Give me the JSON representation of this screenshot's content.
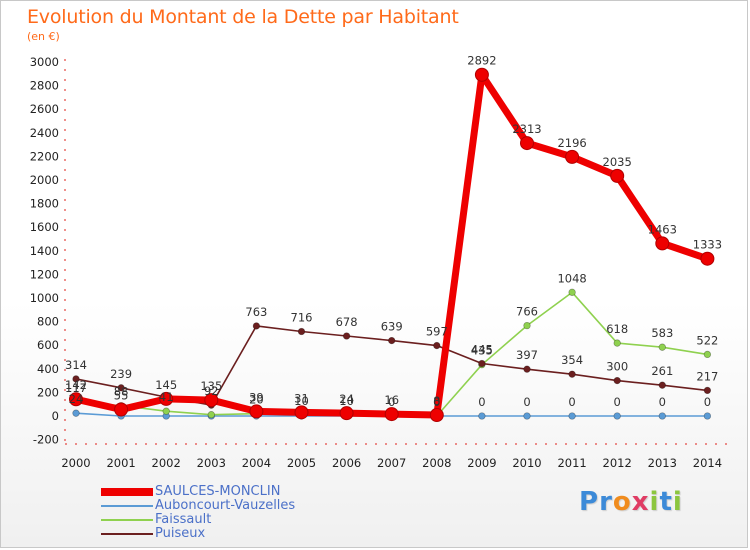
{
  "title": "Evolution du Montant de la Dette par Habitant",
  "subtitle": "(en €)",
  "logo": {
    "letters": [
      "P",
      "r",
      "o",
      "x",
      "i",
      "t",
      "i"
    ],
    "colors": [
      "#3c8ad8",
      "#3c8ad8",
      "#f08c1e",
      "#e03c64",
      "#8cc63e",
      "#3c8ad8",
      "#8cc63e"
    ]
  },
  "chart_data": {
    "type": "line",
    "x": [
      "2000",
      "2001",
      "2002",
      "2003",
      "2004",
      "2005",
      "2006",
      "2007",
      "2008",
      "2009",
      "2010",
      "2011",
      "2012",
      "2013",
      "2014"
    ],
    "ylim": [
      -200,
      3000
    ],
    "yticks": [
      "-200",
      "0",
      "200",
      "400",
      "600",
      "800",
      "1000",
      "1200",
      "1400",
      "1600",
      "1800",
      "2000",
      "2200",
      "2400",
      "2600",
      "2800",
      "3000"
    ],
    "ytick_values": [
      -200,
      0,
      200,
      400,
      600,
      800,
      1000,
      1200,
      1400,
      1600,
      1800,
      2000,
      2200,
      2400,
      2600,
      2800,
      3000
    ],
    "grid": false,
    "legend": "bottom-left",
    "series": [
      {
        "name": "SAULCES-MONCLIN",
        "color": "#ee0000",
        "values": [
          142,
          55,
          145,
          135,
          39,
          31,
          24,
          16,
          8,
          2892,
          2313,
          2196,
          2035,
          1463,
          1333
        ],
        "labels": [
          "142",
          "55",
          "145",
          "135",
          "39",
          "31",
          "24",
          "16",
          "8",
          "2892",
          "2313",
          "2196",
          "2035",
          "1463",
          "1333"
        ]
      },
      {
        "name": "Auboncourt-Vauzelles",
        "color": "#5b9bd5",
        "values": [
          24,
          0,
          0,
          0,
          0,
          0,
          0,
          0,
          0,
          0,
          0,
          0,
          0,
          0,
          0
        ],
        "labels": [
          "24",
          "",
          "",
          "",
          "",
          "",
          "",
          "",
          "",
          "0",
          "0",
          "0",
          "0",
          "0",
          "0"
        ]
      },
      {
        "name": "Faissault",
        "color": "#8fd14f",
        "values": [
          117,
          88,
          41,
          11,
          20,
          10,
          10,
          0,
          0,
          435,
          766,
          1048,
          618,
          583,
          522
        ],
        "labels": [
          "117",
          "88",
          "41",
          "",
          "20",
          "10",
          "10",
          "0",
          "0",
          "435",
          "766",
          "1048",
          "618",
          "583",
          "522"
        ]
      },
      {
        "name": "Puiseux",
        "color": "#6b1f1f",
        "values": [
          314,
          239,
          160,
          92,
          763,
          716,
          678,
          639,
          597,
          445,
          397,
          354,
          300,
          261,
          217
        ],
        "labels": [
          "314",
          "239",
          "",
          "92",
          "763",
          "716",
          "678",
          "639",
          "597",
          "445",
          "397",
          "354",
          "300",
          "261",
          "217"
        ]
      }
    ]
  }
}
